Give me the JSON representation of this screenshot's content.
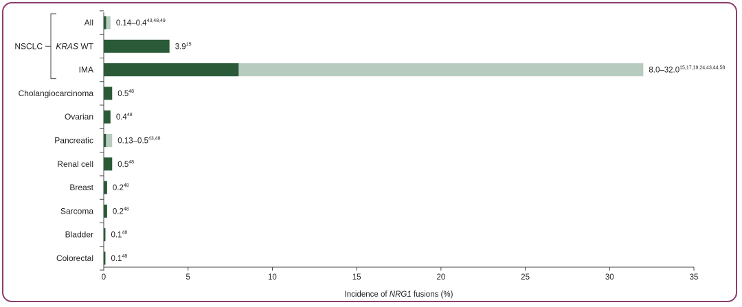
{
  "chart_data": {
    "type": "bar",
    "xlabel_parts": [
      "Incidence of ",
      "NRG1",
      " fusions (%)"
    ],
    "xlim": [
      0,
      35
    ],
    "xticks": [
      0,
      5,
      10,
      15,
      20,
      25,
      30,
      35
    ],
    "group": {
      "label": "NSCLC",
      "members": [
        "All",
        "KRAS WT",
        "IMA"
      ]
    },
    "series": [
      {
        "role": "lower_bound",
        "color": "#2a5a37"
      },
      {
        "role": "upper_range",
        "color": "#b7ccbf"
      }
    ],
    "categories": [
      {
        "name_parts": [
          "All"
        ],
        "low": 0.14,
        "high": 0.4,
        "value_text": "0.14–0.4",
        "refs": "43,48,49"
      },
      {
        "name_parts": [
          "KRAS",
          " WT"
        ],
        "low": 3.9,
        "high": 3.9,
        "value_text": "3.9",
        "refs": "15"
      },
      {
        "name_parts": [
          "IMA"
        ],
        "low": 8.0,
        "high": 32.0,
        "value_text": "8.0–32.0",
        "refs": "15,17,19,24,43,44,58"
      },
      {
        "name_parts": [
          "Cholangiocarcinoma"
        ],
        "low": 0.5,
        "high": 0.5,
        "value_text": "0.5",
        "refs": "48"
      },
      {
        "name_parts": [
          "Ovarian"
        ],
        "low": 0.4,
        "high": 0.4,
        "value_text": "0.4",
        "refs": "48"
      },
      {
        "name_parts": [
          "Pancreatic"
        ],
        "low": 0.13,
        "high": 0.5,
        "value_text": "0.13–0.5",
        "refs": "43,48"
      },
      {
        "name_parts": [
          "Renal cell"
        ],
        "low": 0.5,
        "high": 0.5,
        "value_text": "0.5",
        "refs": "48"
      },
      {
        "name_parts": [
          "Breast"
        ],
        "low": 0.2,
        "high": 0.2,
        "value_text": "0.2",
        "refs": "48"
      },
      {
        "name_parts": [
          "Sarcoma"
        ],
        "low": 0.2,
        "high": 0.2,
        "value_text": "0.2",
        "refs": "48"
      },
      {
        "name_parts": [
          "Bladder"
        ],
        "low": 0.1,
        "high": 0.1,
        "value_text": "0.1",
        "refs": "48"
      },
      {
        "name_parts": [
          "Colorectal"
        ],
        "low": 0.1,
        "high": 0.1,
        "value_text": "0.1",
        "refs": "48"
      }
    ]
  }
}
